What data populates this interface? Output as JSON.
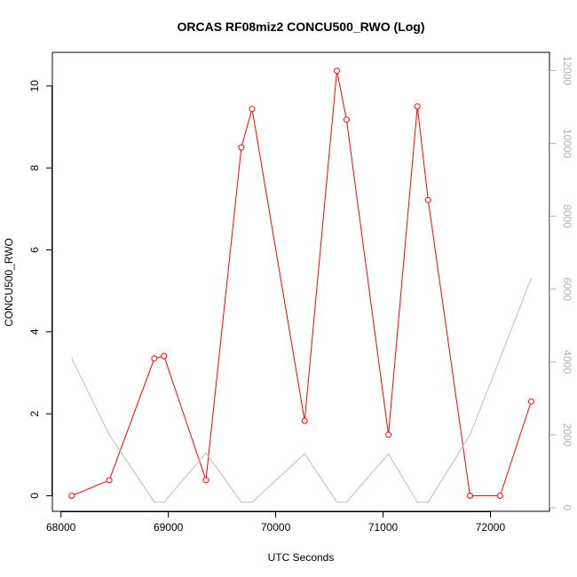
{
  "chart_data": {
    "type": "line",
    "title": "ORCAS RF08miz2 CONCU500_RWO (Log)",
    "xlabel": "UTC Seconds",
    "ylabel": "CONCU500_RWO",
    "ylabel_right": "",
    "xlim": [
      67920,
      72550
    ],
    "ylim": [
      -0.38,
      10.82
    ],
    "ylim_right": [
      -100,
      12500
    ],
    "x_ticks": [
      68000,
      69000,
      70000,
      71000,
      72000
    ],
    "y_ticks": [
      0,
      2,
      4,
      6,
      8,
      10
    ],
    "y_ticks_right": [
      0,
      2000,
      4000,
      6000,
      8000,
      10000,
      12000
    ],
    "grid": false,
    "series": [
      {
        "axis": "left",
        "color": "#ff0000",
        "markers": true,
        "x": [
          68100,
          68450,
          68870,
          68960,
          69350,
          69680,
          69780,
          70270,
          70570,
          70660,
          71050,
          71320,
          71420,
          71810,
          72090,
          72380
        ],
        "y": [
          0.0,
          0.38,
          3.35,
          3.41,
          0.38,
          8.5,
          9.44,
          1.83,
          10.37,
          9.18,
          1.49,
          9.5,
          7.22,
          0.0,
          0.0,
          2.3
        ]
      },
      {
        "axis": "right",
        "color": "#bebebe",
        "markers": false,
        "x": [
          68100,
          68450,
          68870,
          68960,
          69350,
          69680,
          69780,
          70270,
          70570,
          70660,
          71050,
          71320,
          71420,
          71810,
          72090,
          72380
        ],
        "y": [
          4100,
          2000,
          150,
          150,
          1500,
          150,
          150,
          1480,
          150,
          150,
          1480,
          150,
          150,
          2000,
          4100,
          6300
        ]
      }
    ]
  }
}
